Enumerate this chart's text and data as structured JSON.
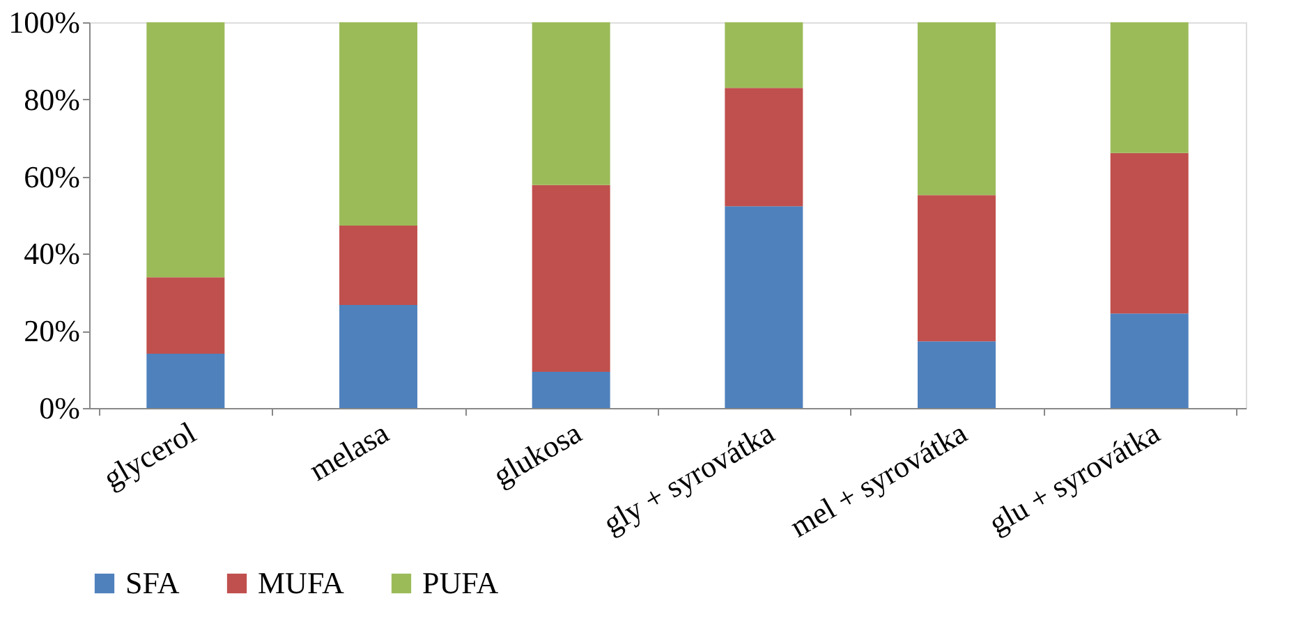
{
  "chart_data": {
    "type": "bar",
    "stacked": true,
    "categories": [
      "glycerol",
      "melasa",
      "glukosa",
      "gly + syrovátka",
      "mel + syrovátka",
      "glu + syrovátka"
    ],
    "series": [
      {
        "name": "SFA",
        "color": "#4f81bd",
        "values": [
          14.1,
          26.7,
          9.4,
          52.3,
          17.3,
          24.5
        ]
      },
      {
        "name": "MUFA",
        "color": "#c0504d",
        "values": [
          19.8,
          20.6,
          48.4,
          30.7,
          37.9,
          41.6
        ]
      },
      {
        "name": "PUFA",
        "color": "#9bbb59",
        "values": [
          66.1,
          52.7,
          42.2,
          17.0,
          44.8,
          33.9
        ]
      }
    ],
    "ylim": [
      0,
      100
    ],
    "yticks": [
      {
        "value": 0,
        "label": "0%"
      },
      {
        "value": 20,
        "label": "20%"
      },
      {
        "value": 40,
        "label": "40%"
      },
      {
        "value": 60,
        "label": "60%"
      },
      {
        "value": 80,
        "label": "80%"
      },
      {
        "value": 100,
        "label": "100%"
      }
    ],
    "grid": false,
    "legend": "bottom"
  }
}
